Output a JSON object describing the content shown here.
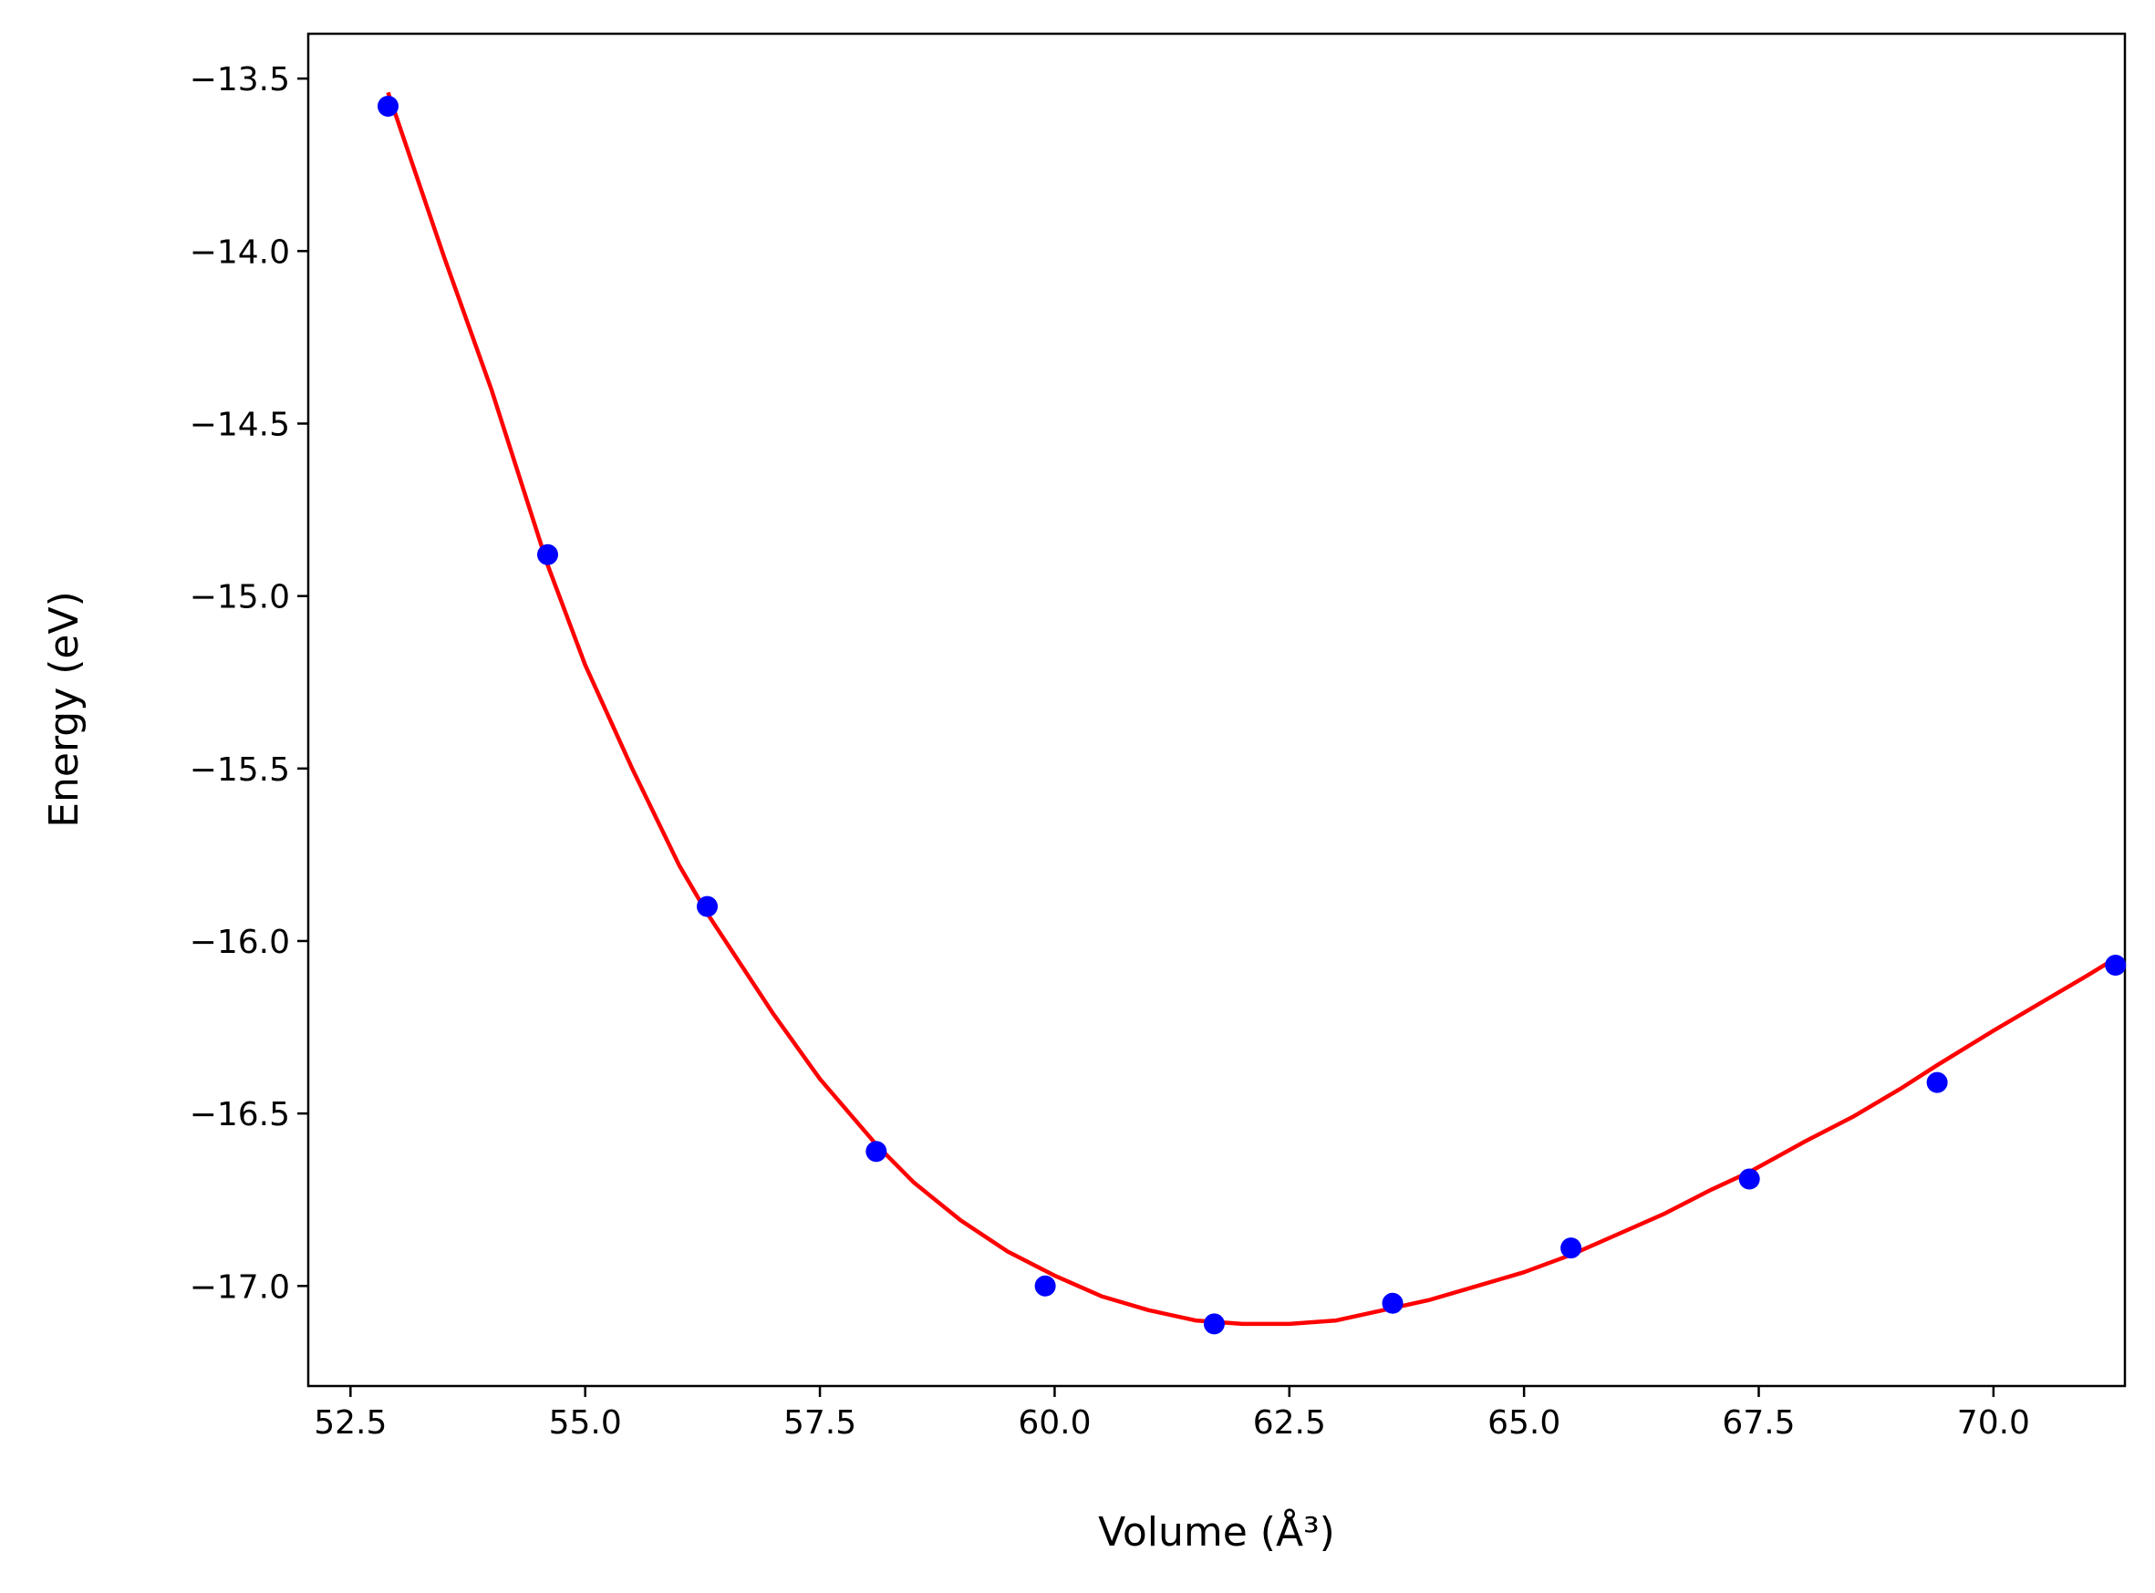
{
  "chart_data": {
    "type": "scatter",
    "title": "",
    "xlabel": "Volume (Å³)",
    "ylabel": "Energy (eV)",
    "xlim": [
      52.05,
      71.4
    ],
    "ylim": [
      -17.29,
      -13.37
    ],
    "xticks": [
      52.5,
      55.0,
      57.5,
      60.0,
      62.5,
      65.0,
      67.5,
      70.0
    ],
    "xtick_labels": [
      "52.5",
      "55.0",
      "57.5",
      "60.0",
      "62.5",
      "65.0",
      "67.5",
      "70.0"
    ],
    "yticks": [
      -13.5,
      -14.0,
      -14.5,
      -15.0,
      -15.5,
      -16.0,
      -16.5,
      -17.0
    ],
    "ytick_labels": [
      "−13.5",
      "−14.0",
      "−14.5",
      "−15.0",
      "−15.5",
      "−16.0",
      "−16.5",
      "−17.0"
    ],
    "grid": false,
    "legend": null,
    "series": [
      {
        "kind": "points",
        "color": "#0000ff",
        "x": [
          52.9,
          54.6,
          56.3,
          58.1,
          59.9,
          61.7,
          63.6,
          65.5,
          67.4,
          69.4,
          71.3
        ],
        "y": [
          -13.58,
          -14.88,
          -15.9,
          -16.61,
          -17.0,
          -17.11,
          -17.05,
          -16.89,
          -16.69,
          -16.41,
          -16.07
        ]
      },
      {
        "kind": "fit-curve",
        "color": "#ff0000",
        "x": [
          52.9,
          53.5,
          54.0,
          54.6,
          55.0,
          55.5,
          56.0,
          56.3,
          57.0,
          57.5,
          58.1,
          58.5,
          59.0,
          59.5,
          60.0,
          60.5,
          61.0,
          61.5,
          62.0,
          62.5,
          63.0,
          63.5,
          64.0,
          64.5,
          65.0,
          65.5,
          66.0,
          66.5,
          67.0,
          67.4,
          68.0,
          68.5,
          69.0,
          69.4,
          70.0,
          70.5,
          71.0,
          71.3
        ],
        "y": [
          -13.54,
          -14.02,
          -14.4,
          -14.91,
          -15.2,
          -15.5,
          -15.78,
          -15.92,
          -16.21,
          -16.4,
          -16.59,
          -16.7,
          -16.81,
          -16.9,
          -16.97,
          -17.03,
          -17.07,
          -17.1,
          -17.11,
          -17.11,
          -17.1,
          -17.07,
          -17.04,
          -17.0,
          -16.96,
          -16.91,
          -16.85,
          -16.79,
          -16.72,
          -16.67,
          -16.58,
          -16.51,
          -16.43,
          -16.36,
          -16.26,
          -16.18,
          -16.1,
          -16.05
        ]
      }
    ]
  }
}
